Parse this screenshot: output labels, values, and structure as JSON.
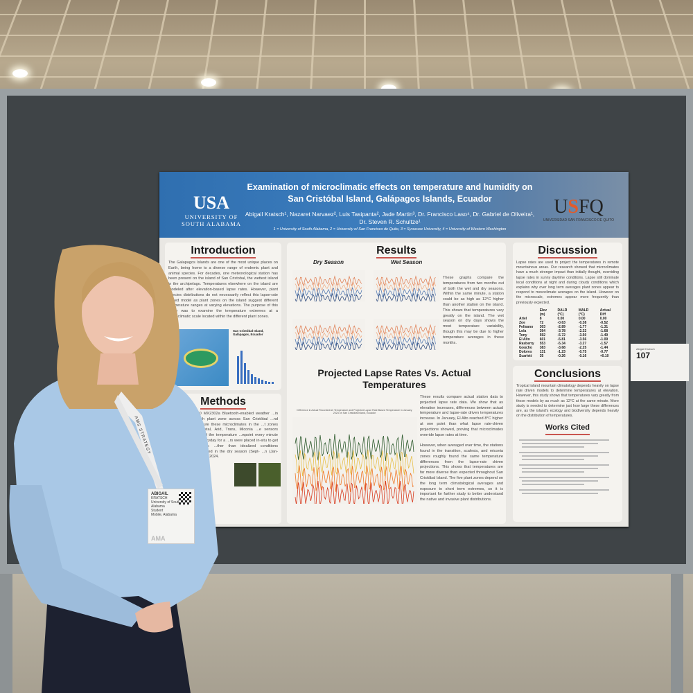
{
  "poster": {
    "title": "Examination of microclimatic effects on temperature and humidity on San Cristóbal Island, Galápagos Islands, Ecuador",
    "authors": "Abigail Kratsch¹, Nazaret Narvaez², Luis Tasipanta², Jade Martin³, Dr. Francisco Laso⁴, Dr. Gabriel de Oliveira¹, Dr. Steven R. Schultze¹",
    "affiliations": "1 = University of South Alabama, 2 = University of San Francisco de Quito, 3 = Syracuse University, 4 = University of Western Washington",
    "logo_left": {
      "mark": "USA",
      "name": "UNIVERSITY OF SOUTH ALABAMA"
    },
    "logo_right": {
      "mark_u": "U",
      "mark_s": "S",
      "mark_fq": "FQ",
      "name": "UNIVERSIDAD SAN FRANCISCO DE QUITO"
    },
    "introduction": {
      "heading": "Introduction",
      "text": "The Galapagos Islands are one of the most unique places on Earth, being home to a diverse range of endemic plant and animal species. For decades, one meteorological station has been present on the island of San Cristobal, the wettest island in the archipelago. Temperatures elsewhere on the island are modeled after elevation-based lapse rates. However, plant species distributions do not necessarily reflect this lapse-rate based model as plant zones on the island suggest different temperature ranges at varying elevations. The purpose of this study was to examine the temperature extremes at a microclimatic scale located within the different plant zones.",
      "map_label": "San Cristóbal Island, Galápagos, Ecuador"
    },
    "methods": {
      "heading": "Methods",
      "text": "...0 MX2302a Bluetooth-enabled weather ...in each plant zone across San Cristóbal ...nd capture these microclimates in the ...t zones (Coastal, Arid, Trans, Miconia ...e sensors record the temperature ...wpoint every minute of everyday for a ...rs were placed in-situ to get realistic ...ther than idealized conditions ...mpared in the dry season (Sept- ...n (Jan-Feb) in 2024."
    },
    "results": {
      "heading": "Results",
      "dry": "Dry Season",
      "wet": "Wet Season",
      "text1": "These graphs compare the temperatures from two months out of both the wet and dry seasons. Within the same minute, a station could be as high as 12°C higher than another station on the island. This shows that temperatures vary greatly on the island. The wet season on dry days shows the most temperature variability, though this may be due to higher temperature averages in these months.",
      "lapse_title": "Projected Lapse Rates Vs. Actual Temperatures",
      "chart_title": "Difference in Actual Recorded Air Temperature and Projected Lapse Rate Based Temperature in January 2024 on San Cristóbal Island, Ecuador",
      "text2": "These results compare actual station data to projected lapse rate data. We show that as elevation increases, differences between actual temperature and lapse-rate driven temperatures increase. In January, El Alto reached 8°C higher at one point than what lapse rate-driven projections showed, proving that microclimates override lapse rates at time.",
      "text3": "However, when averaged over time, the stations found in the transition, scalesia, and miconia zones roughly found the same temperature differences from the lapse-rate driven projections. This shows that temperatures are far more diverse than expected throughout San Cristóbal Island. The five plant zones depend on the long term climatological averages and exposure to short term extremes, so it is important for further study to better understand the native and invasive plant distributions."
    },
    "discussion": {
      "heading": "Discussion",
      "text": "Lapse rates are used to project the temperatures in remote mountainous areas. Our research showed that microclimates have a much stronger impact than initially thought, overriding lapse rates in sunny daytime conditions. Lapse still dominate local conditions at night and during cloudy conditions which explains why over long term averages plant zones appear to respond to mesoclimate averages on the island. However on the microscale, extremes appear more frequently than previously expected.",
      "table": {
        "headers": [
          "",
          "Elev (m)",
          "DALR (°C)",
          "MALR (°C)",
          "Actual Diff"
        ],
        "rows": [
          [
            "Ariel",
            "8",
            "0.00",
            "0.00",
            "0.00"
          ],
          [
            "Zoe",
            "72",
            "-0.63",
            "-0.38",
            "-0.52"
          ],
          [
            "Felisano",
            "303",
            "-2.89",
            "-1.77",
            "-1.31"
          ],
          [
            "Lola",
            "394",
            "-3.78",
            "-2.32",
            "-1.68"
          ],
          [
            "Tony",
            "592",
            "-5.72",
            "-3.50",
            "-1.49"
          ],
          [
            "El Alto",
            "601",
            "-5.81",
            "-3.56",
            "-1.09"
          ],
          [
            "Rasberry",
            "553",
            "-5.34",
            "-3.27",
            "-1.57"
          ],
          [
            "Goucho",
            "383",
            "-3.68",
            "-2.25",
            "-1.44"
          ],
          [
            "Dolores",
            "131",
            "-1.23",
            "-0.75",
            "-0.77"
          ],
          [
            "Scarlett",
            "35",
            "-0.26",
            "-0.16",
            "+0.10"
          ]
        ]
      }
    },
    "conclusions": {
      "heading": "Conclusions",
      "text": "Tropical island mountain climatology depends heavily on lapse rate driven models to determine temperatures at elevation. However, this study shows that temperatures vary greatly from those models by as much as 12°C at the same minute. More study is needed to determine just how large these differences are, as the island's ecology and biodiversity depends heavily on the distribution of temperatures."
    },
    "works_cited": {
      "heading": "Works Cited"
    }
  },
  "poster_tag": {
    "name": "Abigail Kratsch",
    "number": "107"
  },
  "badge": {
    "first": "ABIGAIL",
    "last": "KRATSCH",
    "org": "University of South Alabama",
    "role": "Student",
    "city": "Mobile, Alabama",
    "lanyard": "AMS STRATEGY",
    "footer": "AMA"
  },
  "colors": {
    "banner": "#2f6fb0",
    "heading_underline": "#c9554f",
    "board": "#3f4447",
    "shirt": "#a9c8e6"
  }
}
